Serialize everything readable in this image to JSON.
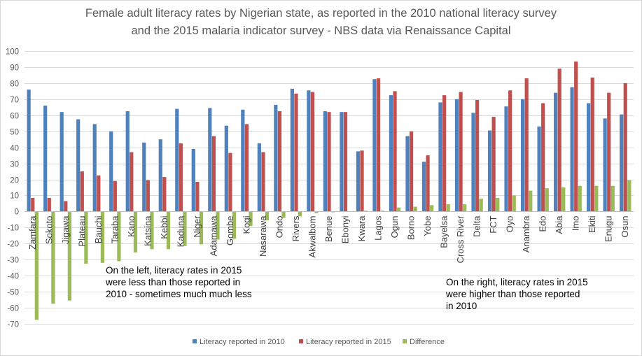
{
  "chart_data": {
    "type": "bar",
    "title_line1": "Female adult literacy rates by Nigerian state, as reported in the 2010 national literacy survey",
    "title_line2": "and the 2015 malaria indicator survey - NBS data via Renaissance Capital",
    "categories": [
      "Zamfara",
      "Sokoto",
      "Jigawa",
      "Plateau",
      "Bauchi",
      "Taraba",
      "Kano",
      "Katsina",
      "Kebbi",
      "Kaduna",
      "Niger",
      "Adamawa",
      "Gombe",
      "Kogi",
      "Nasarawa",
      "Ondo",
      "Rivers",
      "Akwalbom",
      "Benue",
      "Ebonyi",
      "Kwara",
      "Lagos",
      "Ogun",
      "Borno",
      "Yobe",
      "Bayelsa",
      "Cross River",
      "Delta",
      "FCT",
      "Oyo",
      "Anambra",
      "Edo",
      "Abia",
      "Imo",
      "Ekiti",
      "Enugu",
      "Osun"
    ],
    "series": [
      {
        "name": "Literacy reported in 2010",
        "color": "#4f81bd",
        "values": [
          76,
          66,
          62,
          57.5,
          54.5,
          50,
          62.5,
          43,
          45,
          64,
          39,
          64.5,
          53.5,
          63.5,
          42.5,
          66.5,
          76.5,
          75.5,
          62.5,
          62,
          37.5,
          82.5,
          72.5,
          47,
          31,
          68,
          70,
          61.5,
          50.5,
          65.5,
          70,
          53,
          74,
          77.5,
          67.5,
          58,
          60.5
        ]
      },
      {
        "name": "Literacy reported in 2015",
        "color": "#c0504d",
        "values": [
          8.5,
          8.5,
          6.5,
          25,
          22.5,
          19,
          37,
          19.5,
          21.5,
          42.5,
          18.5,
          47,
          36.5,
          54.5,
          37,
          62.5,
          73.5,
          74.5,
          62,
          62,
          38,
          83,
          75,
          50,
          35,
          72.5,
          74.5,
          69.5,
          59,
          75.5,
          83,
          67.5,
          89,
          93.5,
          83.5,
          74,
          80
        ]
      },
      {
        "name": "Difference",
        "color": "#9bbb59",
        "values": [
          -67.5,
          -57.5,
          -55.5,
          -32.5,
          -32,
          -31,
          -25.5,
          -23.5,
          -23.5,
          -21.5,
          -20.5,
          -17.5,
          -17,
          -9,
          -5.5,
          -4,
          -3,
          -1,
          -0.5,
          0,
          0.5,
          0.5,
          2.5,
          3,
          4,
          4.5,
          4.5,
          8,
          8.5,
          10,
          13,
          14.5,
          15,
          16,
          16,
          16,
          19.5
        ]
      }
    ],
    "ylim": [
      -70,
      100
    ],
    "yticks": [
      -70,
      -60,
      -50,
      -40,
      -30,
      -20,
      -10,
      0,
      10,
      20,
      30,
      40,
      50,
      60,
      70,
      80,
      90,
      100
    ],
    "grid": true,
    "legend_position": "bottom"
  },
  "annotations": {
    "left": [
      "On the left, literacy rates in 2015",
      "were less than those reported in",
      "2010  - sometimes much much less"
    ],
    "right": [
      "On the right, literacy rates in 2015",
      "were higher than those reported",
      "in 2010"
    ]
  }
}
